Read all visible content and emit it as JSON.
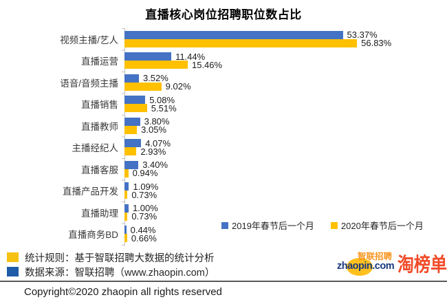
{
  "title": "直播核心岗位招聘职位数占比",
  "chart_data": {
    "type": "bar",
    "orientation": "horizontal",
    "title": "直播核心岗位招聘职位数占比",
    "xlabel": "",
    "ylabel": "",
    "value_suffix": "%",
    "xlim": [
      0,
      60
    ],
    "grid": false,
    "legend_position": "inside-bottom-right",
    "categories": [
      "视频主播/艺人",
      "直播运营",
      "语音/音频主播",
      "直播销售",
      "直播教师",
      "主播经纪人",
      "直播客服",
      "直播产品开发",
      "直播助理",
      "直播商务BD"
    ],
    "series": [
      {
        "name": "2019年春节后一个月",
        "color": "#4472C4",
        "values": [
          53.37,
          11.44,
          3.52,
          5.08,
          3.8,
          4.07,
          3.4,
          1.09,
          1.0,
          0.44
        ]
      },
      {
        "name": "2020年春节后一个月",
        "color": "#FFC000",
        "values": [
          56.83,
          15.46,
          9.02,
          5.51,
          3.05,
          2.93,
          0.94,
          0.73,
          0.73,
          0.66
        ]
      }
    ]
  },
  "legend": {
    "items": [
      {
        "label": "2019年春节后一个月",
        "color": "#4472C4"
      },
      {
        "label": "2020年春节后一个月",
        "color": "#FFC000"
      }
    ]
  },
  "footnotes": [
    {
      "marker_color": "#F5C211",
      "text": "统计规则：基于智联招聘大数据的统计分析"
    },
    {
      "marker_color": "#1F5BA8",
      "text": "数据来源：智联招聘（www.zhaopin.com）"
    }
  ],
  "footer": {
    "copyright": "Copyright©2020 zhaopin all rights reserved"
  },
  "logos": {
    "zhaopin_cn": "智联招聘",
    "zhaopin_en": "zhaopin.com",
    "taobangdan": "淘榜单"
  },
  "colors": {
    "bar_2019": "#4472C4",
    "bar_2020": "#FFC000",
    "axis": "#BFBFBF",
    "separator": "#595959",
    "taobangdan_red": "#F04B28",
    "zhaopin_blue": "#16387C",
    "zhaopin_orange": "#F7941D"
  }
}
